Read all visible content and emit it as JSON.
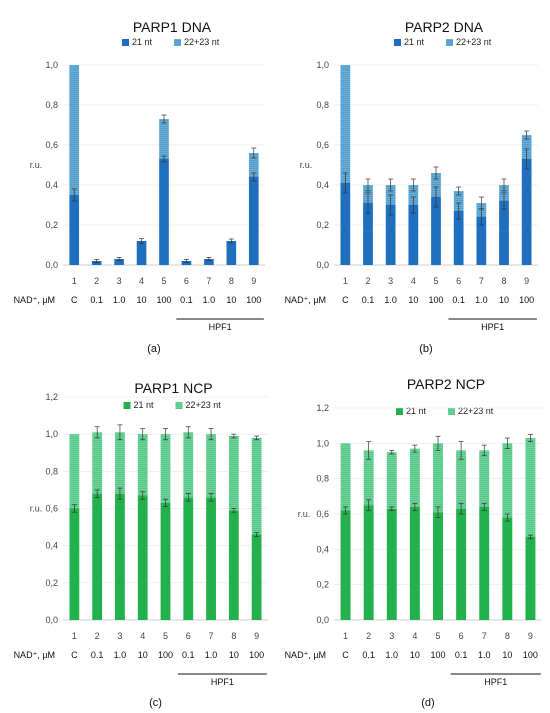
{
  "condition_row_label": "NAD⁺, µM",
  "conditions": [
    "C",
    "0.1",
    "1.0",
    "10",
    "100",
    "0.1",
    "1.0",
    "10",
    "100"
  ],
  "bracket_label": "HPF1",
  "chart_data": [
    {
      "type": "bar",
      "stacked": true,
      "panel": "(a)",
      "title": "PARP1    DNA",
      "ylabel": "r.u.",
      "ylim": [
        0,
        1.0
      ],
      "yticks": [
        "0,0",
        "0,2",
        "0,4",
        "0,6",
        "0,8",
        "1,0"
      ],
      "ytick_values": [
        0,
        0.2,
        0.4,
        0.6,
        0.8,
        1.0
      ],
      "categories": [
        "1",
        "2",
        "3",
        "4",
        "5",
        "6",
        "7",
        "8",
        "9"
      ],
      "legend_position": "top",
      "colors": [
        "#1f6fbf",
        "#6aaed6"
      ],
      "series": [
        {
          "name": "21 nt",
          "values": [
            0.35,
            0.02,
            0.03,
            0.12,
            0.53,
            0.02,
            0.03,
            0.12,
            0.44
          ],
          "errors": [
            0.03,
            0.008,
            0.008,
            0.012,
            0.015,
            0.008,
            0.008,
            0.01,
            0.02
          ]
        },
        {
          "name": "22+23 nt",
          "values": [
            0.65,
            0.0,
            0.0,
            0.0,
            0.2,
            0.0,
            0.0,
            0.0,
            0.12
          ],
          "errors": [
            0,
            0,
            0,
            0,
            0.02,
            0,
            0,
            0,
            0.025
          ]
        }
      ]
    },
    {
      "type": "bar",
      "stacked": true,
      "panel": "(b)",
      "title": "PARP2    DNA",
      "ylabel": "r.u.",
      "ylim": [
        0,
        1.0
      ],
      "yticks": [
        "0,0",
        "0,2",
        "0,4",
        "0,6",
        "0,8",
        "1,0"
      ],
      "ytick_values": [
        0,
        0.2,
        0.4,
        0.6,
        0.8,
        1.0
      ],
      "categories": [
        "1",
        "2",
        "3",
        "4",
        "5",
        "6",
        "7",
        "8",
        "9"
      ],
      "legend_position": "top",
      "colors": [
        "#1f6fbf",
        "#6aaed6"
      ],
      "series": [
        {
          "name": "21 nt",
          "values": [
            0.41,
            0.31,
            0.3,
            0.3,
            0.34,
            0.27,
            0.24,
            0.32,
            0.53
          ],
          "errors": [
            0.05,
            0.05,
            0.05,
            0.04,
            0.05,
            0.04,
            0.04,
            0.04,
            0.05
          ]
        },
        {
          "name": "22+23 nt",
          "values": [
            0.59,
            0.09,
            0.1,
            0.1,
            0.12,
            0.1,
            0.07,
            0.08,
            0.12
          ],
          "errors": [
            0,
            0.03,
            0.03,
            0.03,
            0.03,
            0.02,
            0.03,
            0.03,
            0.02
          ]
        }
      ]
    },
    {
      "type": "bar",
      "stacked": true,
      "panel": "(c)",
      "title": "PARP1    NCP",
      "ylabel": "r.u.",
      "ylim": [
        0,
        1.2
      ],
      "yticks": [
        "0,0",
        "0,2",
        "0,4",
        "0,6",
        "0,8",
        "1,0",
        "1,2"
      ],
      "ytick_values": [
        0,
        0.2,
        0.4,
        0.6,
        0.8,
        1.0,
        1.2
      ],
      "categories": [
        "1",
        "2",
        "3",
        "4",
        "5",
        "6",
        "7",
        "8",
        "9"
      ],
      "legend_position": "top",
      "colors": [
        "#22b14c",
        "#6fd49a"
      ],
      "series": [
        {
          "name": "21 nt",
          "values": [
            0.6,
            0.68,
            0.68,
            0.67,
            0.63,
            0.66,
            0.66,
            0.59,
            0.46
          ],
          "errors": [
            0.02,
            0.02,
            0.03,
            0.02,
            0.02,
            0.02,
            0.02,
            0.01,
            0.01
          ]
        },
        {
          "name": "22+23 nt",
          "values": [
            0.4,
            0.33,
            0.33,
            0.33,
            0.37,
            0.35,
            0.34,
            0.4,
            0.52
          ],
          "errors": [
            0,
            0.03,
            0.04,
            0.03,
            0.03,
            0.03,
            0.03,
            0.01,
            0.01
          ]
        }
      ]
    },
    {
      "type": "bar",
      "stacked": true,
      "panel": "(d)",
      "title": "PARP2    NCP",
      "ylabel": "r.u.",
      "ylim": [
        0,
        1.2
      ],
      "yticks": [
        "0,0",
        "0,2",
        "0,4",
        "0,6",
        "0,8",
        "1,0",
        "1,2"
      ],
      "ytick_values": [
        0,
        0.2,
        0.4,
        0.6,
        0.8,
        1.0,
        1.2
      ],
      "categories": [
        "1",
        "2",
        "3",
        "4",
        "5",
        "6",
        "7",
        "8",
        "9"
      ],
      "legend_position": "top",
      "colors": [
        "#22b14c",
        "#6fd49a"
      ],
      "series": [
        {
          "name": "21 nt",
          "values": [
            0.62,
            0.65,
            0.63,
            0.64,
            0.61,
            0.63,
            0.64,
            0.58,
            0.47
          ],
          "errors": [
            0.02,
            0.03,
            0.01,
            0.02,
            0.03,
            0.03,
            0.02,
            0.02,
            0.01
          ]
        },
        {
          "name": "22+23 nt",
          "values": [
            0.38,
            0.31,
            0.32,
            0.33,
            0.39,
            0.33,
            0.32,
            0.42,
            0.56
          ],
          "errors": [
            0,
            0.05,
            0.01,
            0.02,
            0.04,
            0.05,
            0.03,
            0.03,
            0.02
          ]
        }
      ]
    }
  ]
}
